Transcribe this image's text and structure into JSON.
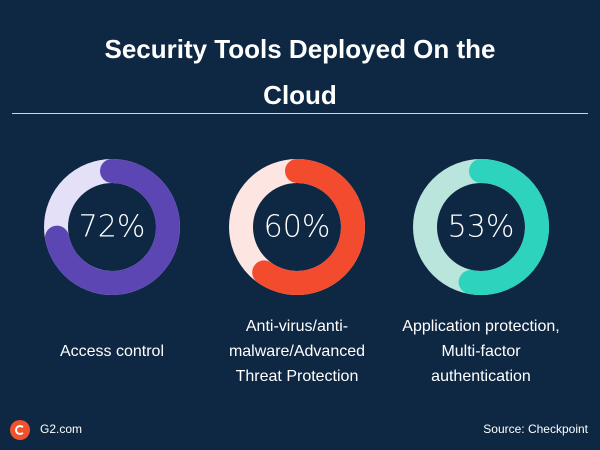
{
  "chart_data": {
    "type": "donut",
    "title": "Security Tools Deployed On the Cloud",
    "categories": [
      "Access control",
      "Anti-virus/anti-malware/Advanced Threat Protection",
      "Application protection, Multi-factor authentication"
    ],
    "values": [
      72,
      60,
      53
    ],
    "value_labels": [
      "72%",
      "60%",
      "53%"
    ],
    "colors": [
      "#5b46b4",
      "#f24b2e",
      "#2ed3bd"
    ],
    "track_colors": [
      "#e4e0f8",
      "#fde6e2",
      "#b9e5dc"
    ]
  },
  "footer": {
    "brand": "G2.com",
    "source": "Source: Checkpoint"
  }
}
